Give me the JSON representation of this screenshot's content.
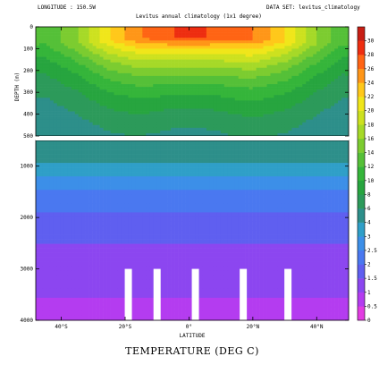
{
  "header": {
    "longitude": "LONGITUDE : 150.5W",
    "dataset": "DATA SET: levitus_climatology",
    "title": "Levitus annual climatology (1x1 degree)"
  },
  "chart_data": {
    "type": "heatmap",
    "title": "Levitus annual climatology (1x1 degree)",
    "xlabel": "LATITUDE",
    "ylabel": "DEPTH (m)",
    "caption": "TEMPERATURE (DEG C)",
    "x_ticks": [
      "40°S",
      "20°S",
      "0°",
      "20°N",
      "40°N"
    ],
    "x_tick_values": [
      -40,
      -20,
      0,
      20,
      40
    ],
    "xlim": [
      -48,
      50
    ],
    "upper_panel": {
      "ylim": [
        0,
        500
      ],
      "y_ticks": [
        "0",
        "100",
        "200",
        "300",
        "400",
        "500"
      ],
      "y_tick_values": [
        0,
        100,
        200,
        300,
        400,
        500
      ]
    },
    "lower_panel": {
      "ylim": [
        500,
        4000
      ],
      "y_ticks": [
        "1000",
        "2000",
        "3000",
        "4000"
      ],
      "y_tick_values": [
        1000,
        2000,
        3000,
        4000
      ]
    },
    "colorbar": {
      "levels": [
        0,
        0.5,
        1,
        1.5,
        2,
        2.5,
        3,
        4,
        6,
        8,
        10,
        12,
        14,
        16,
        18,
        20,
        22,
        24,
        26,
        28,
        30
      ],
      "labels": [
        "0",
        "0.5",
        "1",
        "1.5",
        "2",
        "2.5",
        "3",
        "4",
        "6",
        "8",
        "10",
        "12",
        "14",
        "16",
        "18",
        "20",
        "22",
        "24",
        "26",
        "28",
        "30"
      ],
      "colors": [
        "#e23ce2",
        "#b43cf0",
        "#8c46f0",
        "#5f5ff0",
        "#4a78f0",
        "#3c8fe8",
        "#2f9fc8",
        "#2d8f8a",
        "#2c9a5a",
        "#27a53f",
        "#35b53a",
        "#55c038",
        "#7ccc30",
        "#a6d928",
        "#cde11f",
        "#f0e61a",
        "#ffc81a",
        "#ff9618",
        "#ff6414",
        "#ee2d10",
        "#c81e14"
      ]
    },
    "surface_temperature_profile": {
      "latitude": [
        -45,
        -35,
        -25,
        -15,
        -5,
        0,
        5,
        10,
        20,
        30,
        40,
        48
      ],
      "temperature_surface": [
        12,
        16,
        22,
        26,
        28,
        29,
        28,
        27,
        26,
        22,
        16,
        12
      ]
    },
    "data_gaps_below_3000m_latitude": [
      -19,
      -10,
      2,
      17,
      31
    ]
  }
}
